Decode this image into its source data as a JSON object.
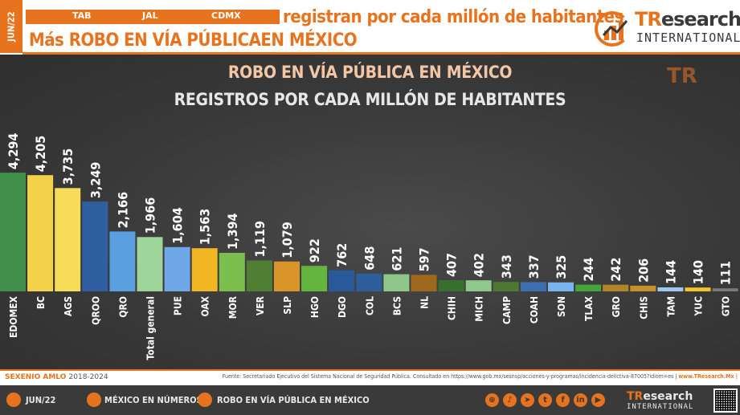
{
  "header": {
    "date_tab": "JUN/22",
    "tags": [
      "TAB",
      "JAL",
      "CDMX"
    ],
    "headline": "registran por cada millón de habitantes",
    "subhead": "Más ROBO EN VÍA PÚBLICAEN MÉXICO",
    "logo_name_a": "TR",
    "logo_name_b": "esearch",
    "logo_sub": "INTERNATIONAL"
  },
  "chart_data": {
    "type": "bar",
    "title": "ROBO EN VÍA PÚBLICA EN MÉXICO",
    "subtitle": "REGISTROS POR CADA MILLÓN DE HABITANTES",
    "categories": [
      "EDOMEX",
      "BC",
      "AGS",
      "QROO",
      "QRO",
      "Total general",
      "PUE",
      "OAX",
      "MOR",
      "VER",
      "SLP",
      "HGO",
      "DGO",
      "COL",
      "BCS",
      "NL",
      "CHIH",
      "MICH",
      "CAMP",
      "COAH",
      "SON",
      "TLAX",
      "GRO",
      "CHIS",
      "TAM",
      "YUC",
      "GTO"
    ],
    "values": [
      4294,
      4205,
      3735,
      3249,
      2166,
      1966,
      1604,
      1563,
      1394,
      1119,
      1079,
      922,
      762,
      648,
      621,
      597,
      407,
      402,
      343,
      337,
      325,
      244,
      242,
      206,
      144,
      140,
      111
    ],
    "value_labels": [
      "4,294",
      "4,205",
      "3,735",
      "3,249",
      "2,166",
      "1,966",
      "1,604",
      "1,563",
      "1,394",
      "1,119",
      "1,079",
      "922",
      "762",
      "648",
      "621",
      "597",
      "407",
      "402",
      "343",
      "337",
      "325",
      "244",
      "242",
      "206",
      "144",
      "140",
      "111"
    ],
    "colors": [
      "#3f8f4a",
      "#f3d24a",
      "#f7dc5a",
      "#2f5fa1",
      "#5a9fe0",
      "#9fd49b",
      "#6fa8e8",
      "#f2b623",
      "#7bbf4e",
      "#4f7d31",
      "#d9952a",
      "#64b53e",
      "#285a9a",
      "#2d5d9a",
      "#8dc78a",
      "#a0681d",
      "#386f2c",
      "#8fc88a",
      "#4d7733",
      "#3b6fb0",
      "#78b5ee",
      "#45a43b",
      "#b48429",
      "#c7902a",
      "#9ec8f0",
      "#f4c52a",
      "#7a7a7a"
    ],
    "ylim": [
      0,
      4500
    ],
    "legend": "none",
    "grid": false
  },
  "footer": {
    "sexenio_label": "SEXENIO AMLO",
    "sexenio_years": "2018-2024",
    "source": "Fuente: Secretariado Ejecutivo del Sistema Nacional de Seguridad Pública. Consultado en https://www.gob.mx/sesnsp/acciones-y-programas/incidencia-delictiva-87005?idiom=es |",
    "site": "www.TResearch.Mx |"
  },
  "bottom_bar": {
    "date": "JUN/22",
    "section": "MÉXICO EN NÚMEROS",
    "topic": "ROBO EN VÍA PÚBLICA EN MÉXICO",
    "logo_name_a": "TR",
    "logo_name_b": "esearch",
    "logo_sub": "INTERNATIONAL",
    "social_icons": [
      "globe-icon",
      "tiktok-icon",
      "telegram-icon",
      "twitter-icon",
      "facebook-icon",
      "linkedin-icon",
      "youtube-icon"
    ]
  }
}
